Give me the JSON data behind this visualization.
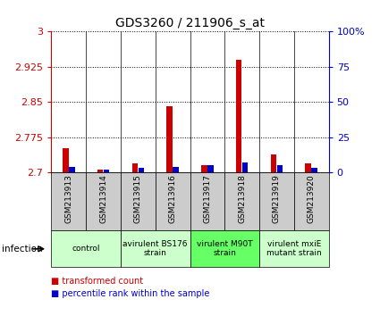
{
  "title": "GDS3260 / 211906_s_at",
  "samples": [
    "GSM213913",
    "GSM213914",
    "GSM213915",
    "GSM213916",
    "GSM213917",
    "GSM213918",
    "GSM213919",
    "GSM213920"
  ],
  "transformed_count": [
    2.752,
    2.705,
    2.718,
    2.84,
    2.715,
    2.94,
    2.738,
    2.718
  ],
  "percentile_rank": [
    4.0,
    2.0,
    3.0,
    4.0,
    5.0,
    7.0,
    5.0,
    3.0
  ],
  "ylim_left": [
    2.7,
    3.0
  ],
  "ylim_right": [
    0,
    100
  ],
  "yticks_left": [
    2.7,
    2.775,
    2.85,
    2.925,
    3.0
  ],
  "yticks_right": [
    0,
    25,
    50,
    75,
    100
  ],
  "ytick_labels_left": [
    "2.7",
    "2.775",
    "2.85",
    "2.925",
    "3"
  ],
  "ytick_labels_right": [
    "0",
    "25",
    "50",
    "75",
    "100%"
  ],
  "left_axis_color": "#cc0000",
  "right_axis_color": "#0000cc",
  "red_color": "#cc0000",
  "blue_color": "#0000cc",
  "groups": [
    {
      "label": "control",
      "samples": [
        0,
        1
      ],
      "color": "#ccffcc"
    },
    {
      "label": "avirulent BS176\nstrain",
      "samples": [
        2,
        3
      ],
      "color": "#ccffcc"
    },
    {
      "label": "virulent M90T\nstrain",
      "samples": [
        4,
        5
      ],
      "color": "#66ff66"
    },
    {
      "label": "virulent mxiE\nmutant strain",
      "samples": [
        6,
        7
      ],
      "color": "#ccffcc"
    }
  ],
  "infection_label": "infection",
  "legend_red": "transformed count",
  "legend_blue": "percentile rank within the sample",
  "xticklabel_bg": "#cccccc",
  "group_label_fontsize": 6.5,
  "sample_label_fontsize": 6.5,
  "axis_label_fontsize": 8,
  "title_fontsize": 10
}
